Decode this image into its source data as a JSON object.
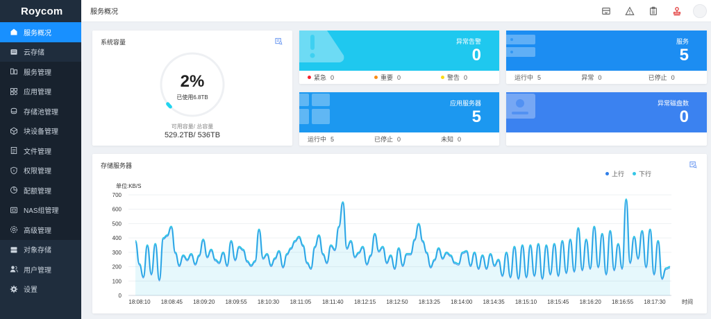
{
  "app": {
    "logo": "Roycom"
  },
  "sidebar": {
    "items": [
      {
        "label": "服务概况",
        "icon": "home-icon",
        "state": "active"
      },
      {
        "label": "云存储",
        "icon": "cloud-storage-icon",
        "state": "parent"
      },
      {
        "label": "服务管理",
        "icon": "service-manage-icon",
        "state": "sub"
      },
      {
        "label": "应用管理",
        "icon": "apps-icon",
        "state": "sub"
      },
      {
        "label": "存储池管理",
        "icon": "storage-pool-icon",
        "state": "sub"
      },
      {
        "label": "块设备管理",
        "icon": "block-device-icon",
        "state": "sub"
      },
      {
        "label": "文件管理",
        "icon": "file-icon",
        "state": "sub"
      },
      {
        "label": "权限管理",
        "icon": "shield-icon",
        "state": "sub"
      },
      {
        "label": "配额管理",
        "icon": "quota-icon",
        "state": "sub"
      },
      {
        "label": "NAS组管理",
        "icon": "nas-icon",
        "state": "sub"
      },
      {
        "label": "高级管理",
        "icon": "advanced-icon",
        "state": "sub"
      },
      {
        "label": "对象存储",
        "icon": "object-storage-icon",
        "state": "normal"
      },
      {
        "label": "用户管理",
        "icon": "users-icon",
        "state": "normal"
      },
      {
        "label": "设置",
        "icon": "gear-icon",
        "state": "normal"
      }
    ]
  },
  "header": {
    "title": "服务概况",
    "tools": [
      "inbox-icon",
      "warning-icon",
      "clipboard-icon",
      "stamp-icon"
    ]
  },
  "capacity": {
    "title": "系统容量",
    "percent": "2%",
    "percent_value": 2,
    "used": "已使用6.8TB",
    "label": "可用容量/ 总容量",
    "values": "529.2TB/ 536TB"
  },
  "alarm": {
    "name": "异常告警",
    "count": "0",
    "cells": [
      {
        "label": "紧急",
        "value": "0",
        "color": "#f5222d"
      },
      {
        "label": "重要",
        "value": "0",
        "color": "#fa8c16"
      },
      {
        "label": "警告",
        "value": "0",
        "color": "#fadb14"
      }
    ]
  },
  "service": {
    "name": "服务",
    "count": "5",
    "cells": [
      {
        "label": "运行中",
        "value": "5"
      },
      {
        "label": "异常",
        "value": "0"
      },
      {
        "label": "已停止",
        "value": "0"
      }
    ]
  },
  "app_server": {
    "name": "应用服务器",
    "count": "5",
    "cells": [
      {
        "label": "运行中",
        "value": "5"
      },
      {
        "label": "已停止",
        "value": "0"
      },
      {
        "label": "未知",
        "value": "0"
      }
    ]
  },
  "disk": {
    "name": "异常磁盘数",
    "count": "0"
  },
  "colors": {
    "accent": "#1890ff",
    "cyan": "#1fc8ef",
    "blue": "#1c8df2",
    "disk_blue": "#3b82f0",
    "sidebar": "#1f2d3d"
  },
  "chart_section": {
    "title": "存储服务器"
  },
  "chart_data": {
    "type": "line",
    "ylabel": "单位:KB/S",
    "xlabel": "时间",
    "ylim": [
      0,
      700
    ],
    "yticks": [
      0,
      100,
      200,
      300,
      400,
      500,
      600,
      700
    ],
    "xticks": [
      "18:08:10",
      "18:08:45",
      "18:09:20",
      "18:09:55",
      "18:10:30",
      "18:11:05",
      "18:11:40",
      "18:12:15",
      "18:12:50",
      "18:13:25",
      "18:14:00",
      "18:14:35",
      "18:15:10",
      "18:15:45",
      "18:16:20",
      "18:16:55",
      "18:17:30"
    ],
    "legend": [
      "上行",
      "下行"
    ],
    "series_colors": [
      "#2f7ee8",
      "#34c6e6"
    ],
    "values": [
      380,
      220,
      130,
      350,
      150,
      360,
      110,
      400,
      420,
      480,
      300,
      210,
      280,
      250,
      290,
      220,
      280,
      390,
      270,
      320,
      250,
      230,
      300,
      210,
      380,
      250,
      340,
      320,
      240,
      210,
      240,
      460,
      260,
      290,
      210,
      260,
      310,
      200,
      290,
      330,
      380,
      410,
      350,
      230,
      190,
      340,
      420,
      290,
      230,
      350,
      320,
      480,
      650,
      330,
      380,
      270,
      300,
      340,
      220,
      280,
      430,
      310,
      340,
      230,
      280,
      190,
      330,
      210,
      290,
      290,
      390,
      500,
      380,
      300,
      200,
      250,
      330,
      260,
      300,
      280,
      230,
      220,
      300,
      310,
      210,
      300,
      190,
      280,
      190,
      290,
      210,
      250,
      140,
      300,
      130,
      340,
      120,
      350,
      130,
      350,
      140,
      360,
      120,
      350,
      150,
      360,
      140,
      380,
      160,
      390,
      170,
      470,
      180,
      390,
      190,
      480,
      200,
      430,
      150,
      450,
      180,
      360,
      190,
      670,
      230,
      410,
      260,
      450,
      200,
      460,
      150,
      380,
      120,
      190,
      200
    ]
  }
}
